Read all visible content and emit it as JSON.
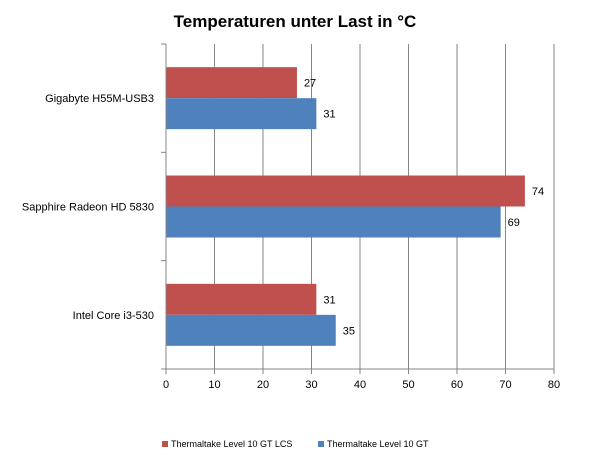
{
  "chart_data": {
    "type": "bar",
    "orientation": "horizontal",
    "title": "Temperaturen unter Last in °C",
    "categories": [
      "Gigabyte H55M-USB3",
      "Sapphire Radeon HD 5830",
      "Intel Core i3-530"
    ],
    "series": [
      {
        "name": "Thermaltake Level 10 GT LCS",
        "color": "#C0504D",
        "values": [
          27,
          74,
          31
        ]
      },
      {
        "name": "Thermaltake Level 10 GT",
        "color": "#4F81BD",
        "values": [
          31,
          69,
          35
        ]
      }
    ],
    "xlim": [
      0,
      80
    ],
    "xticks": [
      0,
      10,
      20,
      30,
      40,
      50,
      60,
      70,
      80
    ],
    "grid": true,
    "legend_position": "bottom"
  }
}
